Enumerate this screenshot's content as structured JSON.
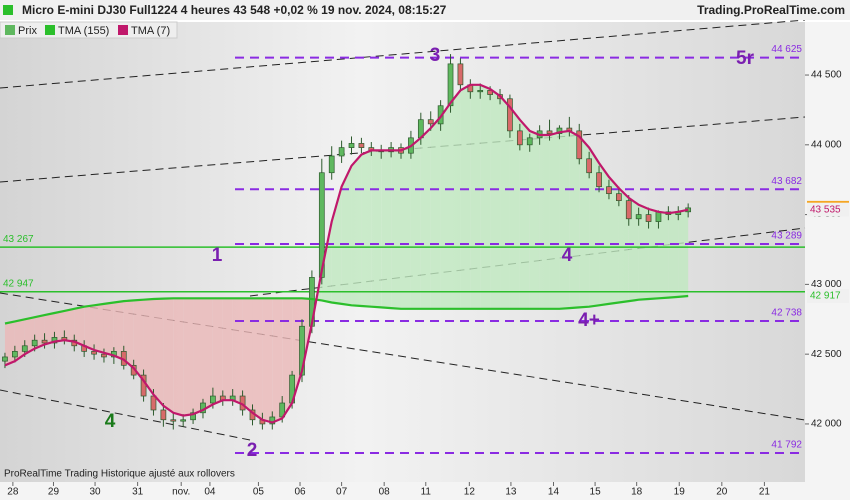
{
  "chart_data": {
    "type": "candlestick",
    "title": "Micro E-mini DJ30 Full1224 4 heures 43 548 +0,02 % 19 nov. 2024, 08:15:27",
    "source": "Trading.ProRealTime.com",
    "footer": "ProRealTime Trading  Historique ajusté aux rollovers",
    "price_name": "Prix",
    "price_color": "#5fb85f",
    "open": [
      42450,
      42480,
      42520,
      42560,
      42600,
      42580,
      42620,
      42600,
      42560,
      42520,
      42500,
      42480,
      42520,
      42420,
      42350,
      42200,
      42100,
      42030,
      42020,
      42030,
      42080,
      42150,
      42200,
      42170,
      42200,
      42100,
      42030,
      42000,
      42050,
      42150,
      42350,
      42700,
      43050,
      43800,
      43920,
      43980,
      44010,
      43980,
      43960,
      43950,
      43980,
      43940,
      44050,
      44180,
      44150,
      44280,
      44580,
      44430,
      44380,
      44390,
      44360,
      44330,
      44100,
      44000,
      44050,
      44100,
      44080,
      44120,
      44100,
      43900,
      43800,
      43700,
      43650,
      43600,
      43470,
      43500,
      43450,
      43520,
      43500,
      43520
    ],
    "high": [
      42510,
      42560,
      42600,
      42640,
      42650,
      42660,
      42670,
      42640,
      42600,
      42570,
      42540,
      42550,
      42560,
      42460,
      42390,
      42250,
      42150,
      42080,
      42070,
      42110,
      42180,
      42260,
      42240,
      42250,
      42240,
      42140,
      42080,
      42090,
      42200,
      42380,
      42750,
      43100,
      43900,
      43990,
      44030,
      44060,
      44050,
      44020,
      44000,
      44020,
      44010,
      44100,
      44230,
      44240,
      44320,
      44650,
      44620,
      44470,
      44440,
      44420,
      44400,
      44360,
      44150,
      44080,
      44140,
      44180,
      44140,
      44200,
      44150,
      43950,
      43850,
      43750,
      43700,
      43640,
      43550,
      43550,
      43530,
      43560,
      43560,
      43580
    ],
    "low": [
      42400,
      42440,
      42480,
      42520,
      42540,
      42540,
      42570,
      42520,
      42480,
      42460,
      42440,
      42430,
      42390,
      42320,
      42160,
      42060,
      41980,
      41960,
      41980,
      42000,
      42040,
      42110,
      42130,
      42130,
      42060,
      41990,
      41960,
      41960,
      42010,
      42110,
      42300,
      42650,
      43000,
      43750,
      43870,
      43930,
      43940,
      43920,
      43900,
      43910,
      43900,
      43900,
      44000,
      44100,
      44100,
      44230,
      44380,
      44330,
      44330,
      44320,
      44290,
      44050,
      43960,
      43950,
      44000,
      44030,
      44040,
      44060,
      43860,
      43760,
      43660,
      43610,
      43560,
      43420,
      43420,
      43400,
      43400,
      43460,
      43460,
      43480
    ],
    "close": [
      42480,
      42520,
      42560,
      42600,
      42580,
      42620,
      42600,
      42560,
      42520,
      42500,
      42480,
      42520,
      42420,
      42350,
      42200,
      42100,
      42030,
      42020,
      42030,
      42080,
      42150,
      42200,
      42170,
      42200,
      42100,
      42030,
      42000,
      42050,
      42150,
      42350,
      42700,
      43050,
      43800,
      43920,
      43980,
      44010,
      43980,
      43960,
      43950,
      43980,
      43940,
      44050,
      44180,
      44150,
      44280,
      44580,
      44430,
      44380,
      44390,
      44360,
      44330,
      44100,
      44000,
      44050,
      44100,
      44080,
      44120,
      44100,
      43900,
      43800,
      43700,
      43650,
      43600,
      43470,
      43500,
      43450,
      43520,
      43500,
      43520,
      43548
    ],
    "series": [
      {
        "name": "TMA (155)",
        "color": "#2bbf2b",
        "values": [
          42720,
          42735,
          42750,
          42765,
          42780,
          42795,
          42810,
          42825,
          42840,
          42850,
          42860,
          42870,
          42880,
          42885,
          42890,
          42895,
          42898,
          42900,
          42900,
          42900,
          42900,
          42900,
          42900,
          42900,
          42900,
          42900,
          42900,
          42900,
          42900,
          42900,
          42900,
          42895,
          42885,
          42870,
          42860,
          42850,
          42845,
          42840,
          42835,
          42830,
          42825,
          42825,
          42825,
          42825,
          42825,
          42825,
          42825,
          42825,
          42825,
          42825,
          42825,
          42825,
          42825,
          42825,
          42825,
          42825,
          42825,
          42830,
          42835,
          42840,
          42850,
          42860,
          42870,
          42880,
          42890,
          42895,
          42900,
          42905,
          42910,
          42917
        ]
      },
      {
        "name": "TMA (7)",
        "color": "#c0186b",
        "values": [
          42420,
          42450,
          42500,
          42540,
          42570,
          42590,
          42600,
          42590,
          42560,
          42530,
          42510,
          42490,
          42460,
          42400,
          42310,
          42210,
          42130,
          42080,
          42060,
          42070,
          42100,
          42140,
          42170,
          42170,
          42140,
          42080,
          42030,
          42010,
          42040,
          42150,
          42380,
          42720,
          43100,
          43450,
          43700,
          43850,
          43930,
          43960,
          43960,
          43960,
          43960,
          43990,
          44050,
          44120,
          44200,
          44300,
          44390,
          44430,
          44430,
          44400,
          44350,
          44270,
          44180,
          44100,
          44070,
          44070,
          44090,
          44100,
          44060,
          43980,
          43870,
          43770,
          43690,
          43620,
          43570,
          43540,
          43520,
          43510,
          43520,
          43535
        ]
      }
    ],
    "xlim": [
      -0.5,
      80.8
    ],
    "xticks": [
      {
        "value": 0.8,
        "label": "28"
      },
      {
        "value": 4.9,
        "label": "29"
      },
      {
        "value": 9.1,
        "label": "30"
      },
      {
        "value": 13.4,
        "label": "31"
      },
      {
        "value": 17.8,
        "label": "nov."
      },
      {
        "value": 20.7,
        "label": "04"
      },
      {
        "value": 25.6,
        "label": "05"
      },
      {
        "value": 29.8,
        "label": "06"
      },
      {
        "value": 34,
        "label": "07"
      },
      {
        "value": 38.3,
        "label": "08"
      },
      {
        "value": 42.5,
        "label": "11"
      },
      {
        "value": 46.9,
        "label": "12"
      },
      {
        "value": 51.1,
        "label": "13"
      },
      {
        "value": 55.4,
        "label": "14"
      },
      {
        "value": 59.6,
        "label": "15"
      },
      {
        "value": 63.8,
        "label": "18"
      },
      {
        "value": 68.1,
        "label": "19"
      },
      {
        "value": 72.4,
        "label": "20"
      },
      {
        "value": 76.7,
        "label": "21"
      }
    ],
    "ylim": [
      41670,
      44880
    ],
    "yticks": [
      {
        "value": 42000,
        "label": "42 000"
      },
      {
        "value": 42500,
        "label": "42 500"
      },
      {
        "value": 43000,
        "label": "43 000"
      },
      {
        "value": 43500,
        "label": "43 500"
      },
      {
        "value": 44000,
        "label": "44 000"
      },
      {
        "value": 44500,
        "label": "44 500"
      }
    ],
    "levels": [
      {
        "value": 44625,
        "label": "44 625"
      },
      {
        "value": 43682,
        "label": "43 682"
      },
      {
        "value": 43289,
        "label": "43 289"
      },
      {
        "value": 42738,
        "label": "42 738"
      },
      {
        "value": 41792,
        "label": "41 792"
      }
    ],
    "level_color": "#8a2be2",
    "hlines": [
      {
        "value": 43267,
        "label": "43 267"
      },
      {
        "value": 42947,
        "label": "42 947"
      }
    ],
    "hline_color": "#2bbf2b",
    "price_labels": [
      {
        "value": 43548,
        "label": "43 548",
        "color": "#222",
        "bg": "#f5a623"
      },
      {
        "value": 43535,
        "label": "43 535",
        "color": "#c0186b",
        "bg": "#f0f0f0"
      },
      {
        "value": 42917,
        "label": "42 917",
        "color": "#2bbf2b",
        "bg": "#f0f0f0"
      }
    ],
    "annotations": [
      "3",
      "5r",
      "1",
      "4",
      "4+",
      "2",
      "4"
    ]
  }
}
